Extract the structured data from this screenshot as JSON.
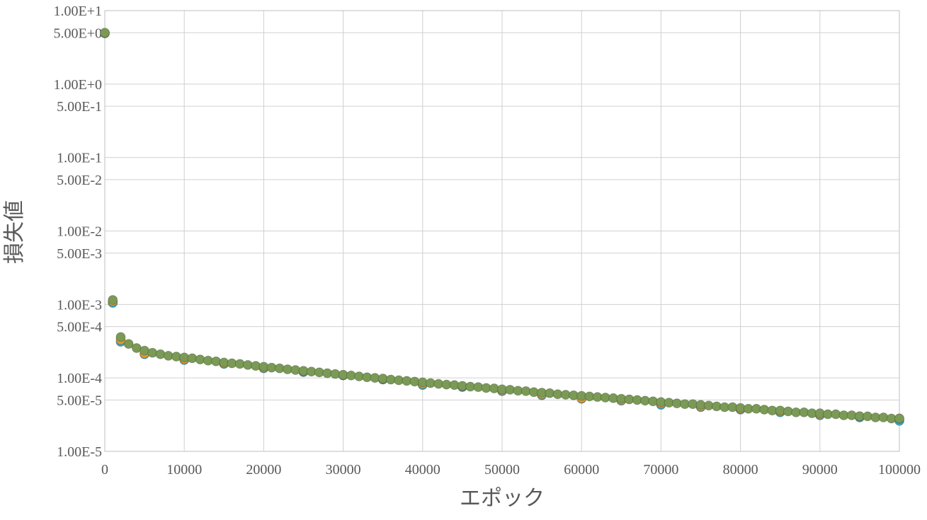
{
  "chart_data": {
    "type": "scatter",
    "title": "",
    "xlabel": "エポック",
    "ylabel": "損失値",
    "xlim": [
      0,
      100000
    ],
    "ylim": [
      1e-05,
      10
    ],
    "yscale": "log",
    "grid": true,
    "x_ticks": [
      0,
      10000,
      20000,
      30000,
      40000,
      50000,
      60000,
      70000,
      80000,
      90000,
      100000
    ],
    "y_ticks": [
      {
        "value": 10,
        "label": "1.00E+1"
      },
      {
        "value": 5,
        "label": "5.00E+0"
      },
      {
        "value": 1,
        "label": "1.00E+0"
      },
      {
        "value": 0.5,
        "label": "5.00E-1"
      },
      {
        "value": 0.1,
        "label": "1.00E-1"
      },
      {
        "value": 0.05,
        "label": "5.00E-2"
      },
      {
        "value": 0.01,
        "label": "1.00E-2"
      },
      {
        "value": 0.005,
        "label": "5.00E-3"
      },
      {
        "value": 0.001,
        "label": "1.00E-3"
      },
      {
        "value": 0.0005,
        "label": "5.00E-4"
      },
      {
        "value": 0.0001,
        "label": "1.00E-4"
      },
      {
        "value": 5e-05,
        "label": "5.00E-5"
      },
      {
        "value": 1e-05,
        "label": "1.00E-5"
      }
    ],
    "series": [
      {
        "color": "#3aa5c9",
        "x": [
          0,
          1000,
          2000,
          5000,
          10000,
          15000,
          20000,
          25000,
          30000,
          35000,
          40000,
          45000,
          50000,
          55000,
          60000,
          65000,
          70000,
          75000,
          80000,
          85000,
          90000,
          95000,
          100000
        ],
        "y": [
          4.9,
          0.00105,
          0.00031,
          0.00021,
          0.000175,
          0.000155,
          0.000135,
          0.00012,
          0.000108,
          9.5e-05,
          8e-05,
          7.5e-05,
          6.6e-05,
          5.8e-05,
          5.2e-05,
          4.9e-05,
          4.3e-05,
          4e-05,
          3.7e-05,
          3.4e-05,
          3.1e-05,
          2.9e-05,
          2.6e-05
        ]
      },
      {
        "color": "#e59a2f",
        "x": [
          0,
          1000,
          2000,
          5000,
          10000,
          15000,
          20000,
          25000,
          30000,
          35000,
          40000,
          45000,
          50000,
          55000,
          60000,
          65000,
          70000,
          75000,
          80000,
          85000,
          90000,
          95000,
          100000
        ],
        "y": [
          4.95,
          0.0011,
          0.00033,
          0.000215,
          0.00018,
          0.000158,
          0.000138,
          0.000123,
          0.00011,
          9.7e-05,
          8.3e-05,
          7.7e-05,
          6.8e-05,
          6e-05,
          5.3e-05,
          5e-05,
          4.5e-05,
          4.1e-05,
          3.8e-05,
          3.5e-05,
          3.2e-05,
          3e-05,
          2.8e-05
        ]
      },
      {
        "color": "#7a9a56",
        "x": [
          0,
          1000,
          2000,
          3000,
          4000,
          5000,
          6000,
          7000,
          8000,
          9000,
          10000,
          11000,
          12000,
          13000,
          14000,
          15000,
          16000,
          17000,
          18000,
          19000,
          20000,
          21000,
          22000,
          23000,
          24000,
          25000,
          26000,
          27000,
          28000,
          29000,
          30000,
          31000,
          32000,
          33000,
          34000,
          35000,
          36000,
          37000,
          38000,
          39000,
          40000,
          41000,
          42000,
          43000,
          44000,
          45000,
          46000,
          47000,
          48000,
          49000,
          50000,
          51000,
          52000,
          53000,
          54000,
          55000,
          56000,
          57000,
          58000,
          59000,
          60000,
          61000,
          62000,
          63000,
          64000,
          65000,
          66000,
          67000,
          68000,
          69000,
          70000,
          71000,
          72000,
          73000,
          74000,
          75000,
          76000,
          77000,
          78000,
          79000,
          80000,
          81000,
          82000,
          83000,
          84000,
          85000,
          86000,
          87000,
          88000,
          89000,
          90000,
          91000,
          92000,
          93000,
          94000,
          95000,
          96000,
          97000,
          98000,
          99000,
          100000
        ],
        "y": [
          5.0,
          0.00115,
          0.00036,
          0.00029,
          0.000255,
          0.000235,
          0.00022,
          0.00021,
          0.0002,
          0.000195,
          0.00019,
          0.000185,
          0.000178,
          0.000172,
          0.000168,
          0.000162,
          0.000158,
          0.000155,
          0.00015,
          0.000146,
          0.000142,
          0.000138,
          0.000135,
          0.000131,
          0.000128,
          0.000125,
          0.000122,
          0.000119,
          0.000116,
          0.000113,
          0.00011,
          0.000108,
          0.000105,
          0.000102,
          0.0001,
          9.8e-05,
          9.5e-05,
          9.3e-05,
          9.1e-05,
          8.9e-05,
          8.7e-05,
          8.5e-05,
          8.3e-05,
          8.1e-05,
          8e-05,
          7.8e-05,
          7.6e-05,
          7.5e-05,
          7.3e-05,
          7.2e-05,
          7e-05,
          6.9e-05,
          6.7e-05,
          6.6e-05,
          6.4e-05,
          6.3e-05,
          6.2e-05,
          6e-05,
          5.9e-05,
          5.8e-05,
          5.7e-05,
          5.6e-05,
          5.5e-05,
          5.4e-05,
          5.3e-05,
          5.2e-05,
          5.1e-05,
          5e-05,
          4.9e-05,
          4.8e-05,
          4.7e-05,
          4.6e-05,
          4.5e-05,
          4.4e-05,
          4.4e-05,
          4.3e-05,
          4.2e-05,
          4.1e-05,
          4e-05,
          4e-05,
          3.9e-05,
          3.8e-05,
          3.8e-05,
          3.7e-05,
          3.6e-05,
          3.6e-05,
          3.5e-05,
          3.4e-05,
          3.4e-05,
          3.3e-05,
          3.3e-05,
          3.2e-05,
          3.2e-05,
          3.1e-05,
          3.1e-05,
          3e-05,
          3e-05,
          2.9e-05,
          2.9e-05,
          2.8e-05,
          2.8e-05
        ]
      }
    ]
  }
}
